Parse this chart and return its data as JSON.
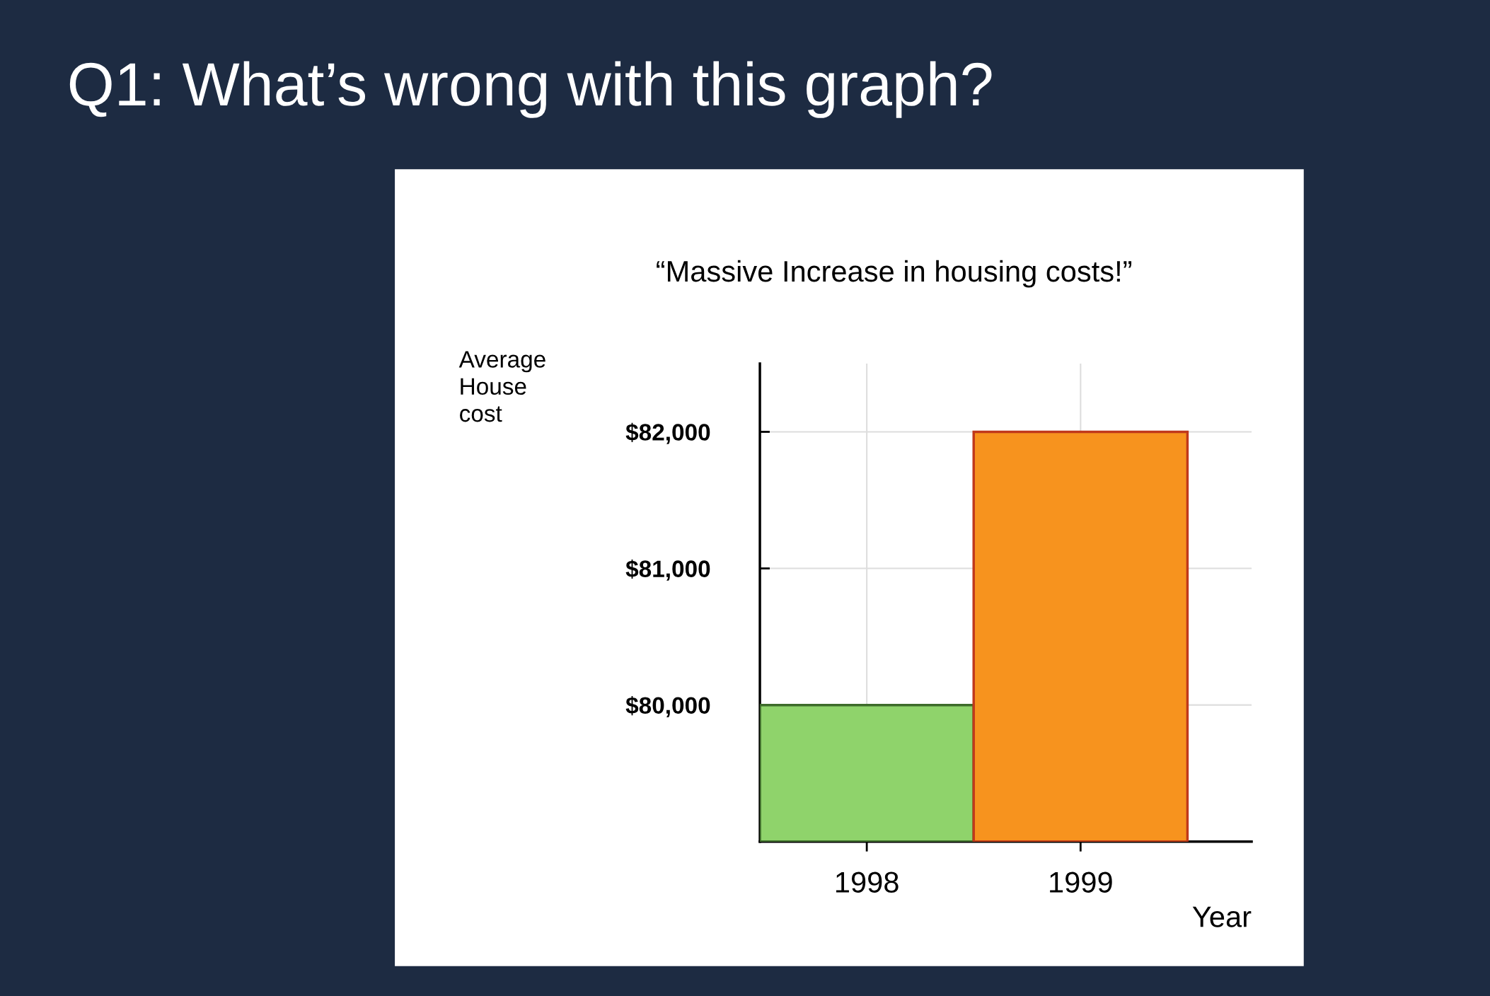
{
  "chart_data": {
    "type": "bar",
    "title": "Q1: What’s wrong with this graph?",
    "subtitle": "“Massive Increase in housing costs!”",
    "xlabel": "Year",
    "ylabel": "Average House cost",
    "categories": [
      "1998",
      "1999"
    ],
    "values": [
      80000,
      82000
    ],
    "colors": [
      "#8fd36b",
      "#f7931e"
    ],
    "ylim": [
      79000,
      82500
    ],
    "yticks": [
      {
        "value": 80000,
        "label": "$80,000"
      },
      {
        "value": 81000,
        "label": "$81,000"
      },
      {
        "value": 82000,
        "label": "$82,000"
      }
    ],
    "grid": true
  }
}
